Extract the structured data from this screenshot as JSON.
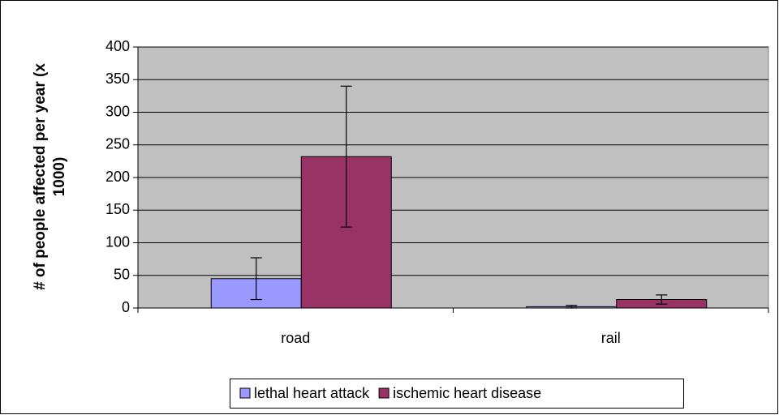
{
  "chart_data": {
    "type": "bar",
    "y_label": "# of people affected per year (x 1000)",
    "categories": [
      "road",
      "rail"
    ],
    "series": [
      {
        "name": "lethal heart attack",
        "color": "#9999ff",
        "values": [
          45,
          2
        ],
        "errors": [
          32,
          2
        ]
      },
      {
        "name": "ischemic heart disease",
        "color": "#993366",
        "values": [
          232,
          13
        ],
        "errors": [
          108,
          7
        ]
      }
    ],
    "ylim": [
      0,
      400
    ],
    "yticks": [
      0,
      50,
      100,
      150,
      200,
      250,
      300,
      350,
      400
    ],
    "grid": true,
    "legend": "bottom"
  }
}
